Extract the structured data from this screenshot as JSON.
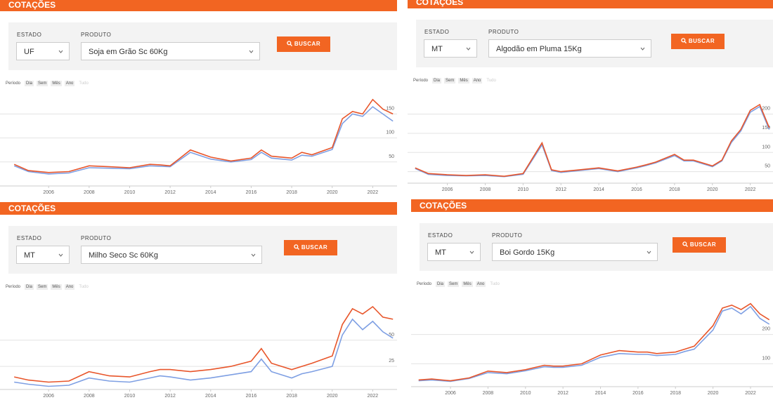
{
  "panels": [
    {
      "header": "COTAÇÕES",
      "estado_label": "ESTADO",
      "estado": "UF",
      "produto_label": "PRODUTO",
      "produto": "Soja em Grão Sc 60Kg",
      "button": "BUSCAR",
      "period_label": "Período",
      "period_options": [
        "Dia",
        "Sem",
        "Mês",
        "Ano",
        "Tudo"
      ]
    },
    {
      "header": "COTAÇÕES",
      "estado_label": "ESTADO",
      "estado": "MT",
      "produto_label": "PRODUTO",
      "produto": "Algodão em Pluma 15Kg",
      "button": "BUSCAR",
      "period_label": "Período",
      "period_options": [
        "Dia",
        "Sem",
        "Mês",
        "Ano",
        "Tudo"
      ]
    },
    {
      "header": "COTAÇÕES",
      "estado_label": "ESTADO",
      "estado": "MT",
      "produto_label": "PRODUTO",
      "produto": "Milho Seco Sc 60Kg",
      "button": "BUSCAR",
      "period_label": "Período",
      "period_options": [
        "Dia",
        "Sem",
        "Mês",
        "Ano",
        "Tudo"
      ]
    },
    {
      "header": "COTAÇÕES",
      "estado_label": "ESTADO",
      "estado": "MT",
      "produto_label": "PRODUTO",
      "produto": "Boi Gordo 15Kg",
      "button": "BUSCAR",
      "period_label": "Período",
      "period_options": [
        "Dia",
        "Sem",
        "Mês",
        "Ano",
        "Tudo"
      ]
    }
  ],
  "chart_data": [
    {
      "type": "line",
      "x": [
        2004.3,
        2005,
        2006,
        2007,
        2008,
        2009,
        2010,
        2011,
        2011.5,
        2012,
        2013,
        2014,
        2015,
        2016,
        2016.5,
        2017,
        2018,
        2018.5,
        2019,
        2020,
        2020.5,
        2021,
        2021.5,
        2022,
        2022.5,
        2023
      ],
      "series": [
        {
          "color": "#e8552a",
          "values": [
            45,
            32,
            28,
            30,
            42,
            40,
            38,
            45,
            44,
            42,
            75,
            60,
            52,
            58,
            75,
            62,
            58,
            70,
            65,
            80,
            140,
            155,
            150,
            180,
            160,
            150
          ]
        },
        {
          "color": "#7e9fe3",
          "values": [
            42,
            30,
            25,
            27,
            38,
            37,
            36,
            42,
            41,
            40,
            70,
            56,
            50,
            55,
            70,
            58,
            54,
            64,
            62,
            76,
            130,
            150,
            145,
            165,
            150,
            135
          ]
        }
      ],
      "xlim": [
        2003.6,
        2023.2
      ],
      "ylim": [
        0,
        190
      ],
      "xticks": [
        2006,
        2008,
        2010,
        2012,
        2014,
        2016,
        2018,
        2020,
        2022
      ],
      "yticks": [
        50,
        100,
        150
      ],
      "grid": true
    },
    {
      "type": "line",
      "x": [
        2004.3,
        2005,
        2006,
        2007,
        2008,
        2009,
        2010,
        2011,
        2011.5,
        2012,
        2013,
        2014,
        2015,
        2016,
        2016.5,
        2017,
        2018,
        2018.5,
        2019,
        2020,
        2020.5,
        2021,
        2021.5,
        2022,
        2022.5,
        2023
      ],
      "series": [
        {
          "color": "#e8552a",
          "values": [
            60,
            45,
            42,
            40,
            42,
            38,
            45,
            125,
            55,
            50,
            55,
            60,
            52,
            62,
            68,
            75,
            95,
            80,
            80,
            65,
            80,
            130,
            160,
            210,
            225,
            165
          ]
        },
        {
          "color": "#7e9fe3",
          "values": [
            58,
            43,
            40,
            39,
            40,
            37,
            43,
            120,
            53,
            48,
            53,
            58,
            50,
            60,
            66,
            73,
            92,
            78,
            78,
            63,
            78,
            126,
            156,
            205,
            220,
            160
          ]
        }
      ],
      "xlim": [
        2003.9,
        2023.2
      ],
      "ylim": [
        20,
        258
      ],
      "xticks": [
        2006,
        2008,
        2010,
        2012,
        2014,
        2016,
        2018,
        2020,
        2022
      ],
      "yticks": [
        50,
        100,
        150,
        200
      ],
      "grid": true
    },
    {
      "type": "line",
      "x": [
        2004.3,
        2005,
        2006,
        2007,
        2008,
        2009,
        2010,
        2011,
        2011.5,
        2012,
        2013,
        2014,
        2015,
        2016,
        2016.5,
        2017,
        2018,
        2018.5,
        2019,
        2020,
        2020.5,
        2021,
        2021.5,
        2022,
        2022.5,
        2023
      ],
      "series": [
        {
          "color": "#e8552a",
          "values": [
            15,
            12,
            10,
            11,
            20,
            16,
            15,
            20,
            22,
            22,
            20,
            22,
            25,
            30,
            42,
            28,
            22,
            25,
            28,
            35,
            65,
            80,
            75,
            82,
            72,
            70
          ]
        },
        {
          "color": "#7e9fe3",
          "values": [
            10,
            8,
            6,
            7,
            14,
            11,
            10,
            14,
            16,
            15,
            12,
            14,
            17,
            20,
            32,
            20,
            14,
            18,
            20,
            25,
            55,
            70,
            60,
            68,
            58,
            52
          ]
        }
      ],
      "xlim": [
        2003.6,
        2023.2
      ],
      "ylim": [
        3,
        90
      ],
      "xticks": [
        2006,
        2008,
        2010,
        2012,
        2014,
        2016,
        2018,
        2020,
        2022
      ],
      "yticks": [
        25,
        50
      ],
      "grid": true
    },
    {
      "type": "line",
      "x": [
        2004.3,
        2005,
        2006,
        2007,
        2008,
        2009,
        2010,
        2011,
        2011.5,
        2012,
        2013,
        2014,
        2015,
        2016,
        2016.5,
        2017,
        2018,
        2018.5,
        2019,
        2020,
        2020.5,
        2021,
        2021.5,
        2022,
        2022.5,
        2023
      ],
      "series": [
        {
          "color": "#e8552a",
          "values": [
            45,
            48,
            42,
            52,
            75,
            70,
            80,
            95,
            92,
            92,
            100,
            130,
            145,
            140,
            140,
            135,
            140,
            150,
            160,
            230,
            290,
            300,
            285,
            305,
            270,
            250
          ]
        },
        {
          "color": "#7e9fe3",
          "values": [
            42,
            45,
            40,
            50,
            70,
            66,
            76,
            90,
            88,
            88,
            95,
            122,
            135,
            132,
            132,
            128,
            132,
            142,
            150,
            215,
            280,
            290,
            270,
            295,
            255,
            235
          ]
        }
      ],
      "xlim": [
        2003.9,
        2023.2
      ],
      "ylim": [
        22,
        333
      ],
      "xticks": [
        2006,
        2008,
        2010,
        2012,
        2014,
        2016,
        2018,
        2020,
        2022
      ],
      "yticks": [
        100,
        200
      ],
      "grid": true
    }
  ]
}
